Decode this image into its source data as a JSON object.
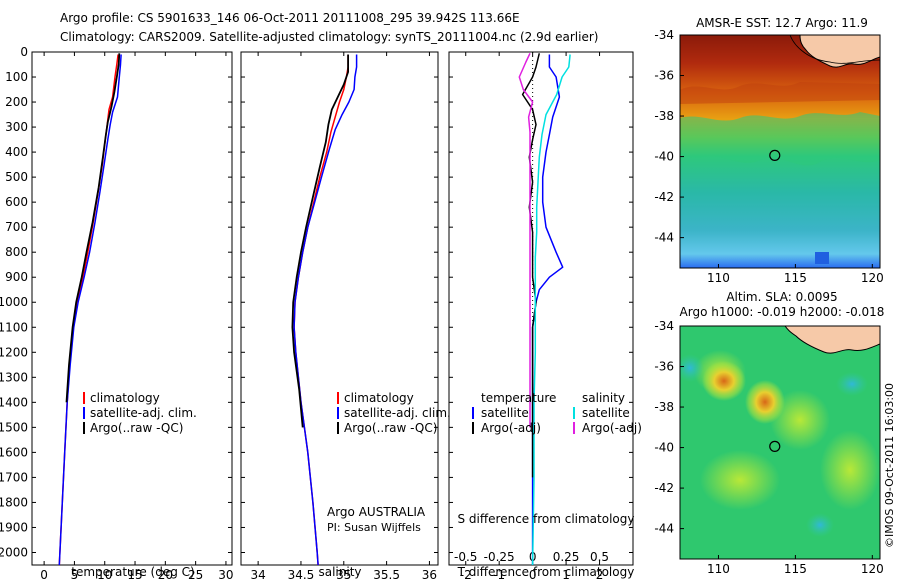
{
  "header": {
    "title_line1": "Argo profile: CS 5901633_146 06-Oct-2011 20111008_295 39.942S 113.66E",
    "title_line2": "Climatology: CARS2009. Satellite-adjusted climatology: synTS_20111004.nc (2.9d earlier)"
  },
  "credit": "©IMOS 09-Oct-2011 16:03:00",
  "colors": {
    "climatology": "#ff0000",
    "satellite": "#0000ff",
    "argo": "#000000",
    "salinity_satellite": "#00e0e0",
    "salinity_argo": "#e020e0",
    "land": "#f6c9a8"
  },
  "chart_data": [
    {
      "type": "line",
      "xlabel": "temperature (deg C)",
      "ylabel": "",
      "xlim": [
        -2,
        31
      ],
      "ylim": [
        2050,
        0
      ],
      "xticks": [
        "0",
        "5",
        "10",
        "15",
        "20",
        "25",
        "30"
      ],
      "xtick_values": [
        0,
        5,
        10,
        15,
        20,
        25,
        30
      ],
      "yticks": [
        "0",
        "100",
        "200",
        "300",
        "400",
        "500",
        "600",
        "700",
        "800",
        "900",
        "1000",
        "1100",
        "1200",
        "1300",
        "1400",
        "1500",
        "1600",
        "1700",
        "1800",
        "1900",
        "2000"
      ],
      "ytick_values": [
        0,
        100,
        200,
        300,
        400,
        500,
        600,
        700,
        800,
        900,
        1000,
        1100,
        1200,
        1300,
        1400,
        1500,
        1600,
        1700,
        1800,
        1900,
        2000
      ],
      "legend": [
        "climatology",
        "satellite-adj. clim.",
        "Argo(..raw -QC)"
      ],
      "series": [
        {
          "name": "climatology",
          "points": [
            [
              12.2,
              10
            ],
            [
              12.0,
              50
            ],
            [
              11.7,
              100
            ],
            [
              11.3,
              180
            ],
            [
              10.7,
              230
            ],
            [
              10.4,
              290
            ],
            [
              10.1,
              350
            ],
            [
              9.6,
              450
            ],
            [
              8.9,
              560
            ],
            [
              8.1,
              680
            ],
            [
              7.2,
              800
            ],
            [
              6.4,
              900
            ],
            [
              5.4,
              1000
            ],
            [
              4.8,
              1100
            ],
            [
              4.2,
              1250
            ],
            [
              3.8,
              1400
            ],
            [
              3.4,
              1600
            ],
            [
              3.0,
              1800
            ],
            [
              2.6,
              2000
            ],
            [
              2.5,
              2050
            ]
          ]
        },
        {
          "name": "satellite-adj. clim.",
          "points": [
            [
              12.7,
              10
            ],
            [
              12.6,
              50
            ],
            [
              12.4,
              100
            ],
            [
              12.1,
              180
            ],
            [
              11.3,
              240
            ],
            [
              10.9,
              290
            ],
            [
              10.5,
              350
            ],
            [
              9.9,
              450
            ],
            [
              9.2,
              560
            ],
            [
              8.4,
              680
            ],
            [
              7.5,
              800
            ],
            [
              6.6,
              900
            ],
            [
              5.6,
              1000
            ],
            [
              4.9,
              1100
            ],
            [
              4.3,
              1250
            ],
            [
              3.8,
              1400
            ],
            [
              3.4,
              1600
            ],
            [
              3.0,
              1800
            ],
            [
              2.6,
              2000
            ],
            [
              2.5,
              2050
            ]
          ]
        },
        {
          "name": "Argo(..raw -QC)",
          "points": [
            [
              12.4,
              5
            ],
            [
              12.3,
              50
            ],
            [
              12.0,
              100
            ],
            [
              11.6,
              160
            ],
            [
              11.1,
              220
            ],
            [
              10.5,
              280
            ],
            [
              10.2,
              330
            ],
            [
              9.7,
              420
            ],
            [
              9.0,
              540
            ],
            [
              8.0,
              680
            ],
            [
              7.0,
              800
            ],
            [
              6.2,
              900
            ],
            [
              5.3,
              1000
            ],
            [
              4.7,
              1100
            ],
            [
              4.1,
              1250
            ],
            [
              3.7,
              1400
            ]
          ]
        }
      ]
    },
    {
      "type": "line",
      "xlabel": "salinity",
      "xlim": [
        33.8,
        36.1
      ],
      "ylim": [
        2050,
        0
      ],
      "xticks": [
        "34",
        "34.5",
        "35",
        "35.5",
        "36"
      ],
      "xtick_values": [
        34,
        34.5,
        35,
        35.5,
        36
      ],
      "legend": [
        "climatology",
        "satellite-adj. clim.",
        "Argo(..raw -QC)"
      ],
      "annotation_line1": "Argo AUSTRALIA",
      "annotation_line2": "PI: Susan Wijffels",
      "series": [
        {
          "name": "climatology",
          "points": [
            [
              35.05,
              10
            ],
            [
              35.05,
              60
            ],
            [
              35.03,
              100
            ],
            [
              35.0,
              150
            ],
            [
              34.95,
              200
            ],
            [
              34.9,
              260
            ],
            [
              34.85,
              320
            ],
            [
              34.8,
              400
            ],
            [
              34.72,
              500
            ],
            [
              34.65,
              600
            ],
            [
              34.58,
              700
            ],
            [
              34.52,
              800
            ],
            [
              34.47,
              900
            ],
            [
              34.43,
              1000
            ],
            [
              34.42,
              1100
            ],
            [
              34.44,
              1200
            ],
            [
              34.5,
              1400
            ],
            [
              34.58,
              1600
            ],
            [
              34.64,
              1800
            ],
            [
              34.69,
              2000
            ],
            [
              34.7,
              2050
            ]
          ]
        },
        {
          "name": "satellite-adj. clim.",
          "points": [
            [
              35.15,
              10
            ],
            [
              35.15,
              60
            ],
            [
              35.13,
              100
            ],
            [
              35.12,
              150
            ],
            [
              35.06,
              200
            ],
            [
              34.98,
              250
            ],
            [
              34.9,
              310
            ],
            [
              34.83,
              390
            ],
            [
              34.74,
              500
            ],
            [
              34.66,
              600
            ],
            [
              34.58,
              700
            ],
            [
              34.52,
              800
            ],
            [
              34.47,
              900
            ],
            [
              34.43,
              1000
            ],
            [
              34.42,
              1100
            ],
            [
              34.44,
              1200
            ],
            [
              34.5,
              1400
            ],
            [
              34.58,
              1600
            ],
            [
              34.64,
              1800
            ],
            [
              34.69,
              2000
            ],
            [
              34.7,
              2050
            ]
          ]
        },
        {
          "name": "Argo(..raw -QC)",
          "points": [
            [
              35.05,
              10
            ],
            [
              35.05,
              80
            ],
            [
              35.0,
              130
            ],
            [
              34.93,
              180
            ],
            [
              34.86,
              230
            ],
            [
              34.82,
              290
            ],
            [
              34.79,
              360
            ],
            [
              34.72,
              460
            ],
            [
              34.64,
              580
            ],
            [
              34.56,
              700
            ],
            [
              34.5,
              800
            ],
            [
              34.45,
              900
            ],
            [
              34.41,
              1000
            ],
            [
              34.4,
              1100
            ],
            [
              34.42,
              1200
            ],
            [
              34.48,
              1350
            ],
            [
              34.52,
              1500
            ]
          ]
        }
      ]
    },
    {
      "type": "line",
      "xlabel": "T difference from climatology",
      "top_xlabel": "S difference from climatology",
      "xlim": [
        -2.5,
        3.0
      ],
      "ylim": [
        2050,
        0
      ],
      "xticks": [
        "-2",
        "-1",
        "0",
        "1",
        "2"
      ],
      "xtick_values": [
        -2,
        -1,
        0,
        1,
        2
      ],
      "top_xticks": [
        "-0.5",
        "-0.25",
        "0",
        "0.25",
        "0.5"
      ],
      "top_xtick_values": [
        -0.5,
        -0.25,
        0,
        0.25,
        0.5
      ],
      "legend_temperature_title": "temperature",
      "legend_salinity_title": "salinity",
      "legend_temperature": [
        "satellite",
        "Argo(-adj)"
      ],
      "legend_salinity": [
        "satellite",
        "Argo(-adj)"
      ],
      "series": [
        {
          "name": "temperature satellite",
          "points": [
            [
              0.5,
              10
            ],
            [
              0.5,
              60
            ],
            [
              0.7,
              100
            ],
            [
              0.8,
              180
            ],
            [
              0.6,
              260
            ],
            [
              0.5,
              330
            ],
            [
              0.4,
              400
            ],
            [
              0.3,
              500
            ],
            [
              0.3,
              600
            ],
            [
              0.4,
              700
            ],
            [
              0.7,
              800
            ],
            [
              0.9,
              860
            ],
            [
              0.5,
              900
            ],
            [
              0.2,
              950
            ],
            [
              0.1,
              1000
            ],
            [
              0.0,
              1100
            ],
            [
              0.0,
              1400
            ],
            [
              0.0,
              2050
            ]
          ]
        },
        {
          "name": "temperature Argo(-adj)",
          "points": [
            [
              0.2,
              5
            ],
            [
              0.1,
              60
            ],
            [
              0.0,
              100
            ],
            [
              -0.3,
              170
            ],
            [
              0.0,
              230
            ],
            [
              0.1,
              290
            ],
            [
              0.0,
              350
            ],
            [
              -0.1,
              420
            ],
            [
              0.0,
              520
            ],
            [
              -0.1,
              620
            ],
            [
              0.0,
              720
            ],
            [
              0.0,
              820
            ],
            [
              0.0,
              900
            ],
            [
              0.1,
              1000
            ],
            [
              0.0,
              1100
            ],
            [
              0.0,
              1300
            ],
            [
              0.0,
              1500
            ],
            [
              0.0,
              1700
            ]
          ]
        },
        {
          "name": "salinity satellite",
          "points": [
            [
              0.28,
              10
            ],
            [
              0.27,
              60
            ],
            [
              0.22,
              100
            ],
            [
              0.18,
              170
            ],
            [
              0.1,
              250
            ],
            [
              0.07,
              330
            ],
            [
              0.05,
              420
            ],
            [
              0.04,
              520
            ],
            [
              0.03,
              620
            ],
            [
              0.03,
              720
            ],
            [
              0.02,
              820
            ],
            [
              0.02,
              920
            ],
            [
              0.02,
              1020
            ],
            [
              0.02,
              1200
            ],
            [
              0.01,
              1400
            ],
            [
              0.01,
              1700
            ],
            [
              0.0,
              2050
            ]
          ]
        },
        {
          "name": "salinity Argo(-adj)",
          "points": [
            [
              -0.02,
              5
            ],
            [
              -0.05,
              40
            ],
            [
              -0.1,
              100
            ],
            [
              -0.07,
              150
            ],
            [
              0.0,
              200
            ],
            [
              -0.03,
              260
            ],
            [
              -0.02,
              320
            ],
            [
              -0.02,
              420
            ],
            [
              -0.02,
              520
            ],
            [
              -0.02,
              620
            ],
            [
              -0.02,
              720
            ],
            [
              -0.02,
              820
            ],
            [
              -0.02,
              920
            ],
            [
              -0.02,
              1020
            ],
            [
              -0.02,
              1200
            ],
            [
              -0.02,
              1400
            ],
            [
              -0.02,
              1500
            ]
          ]
        }
      ]
    },
    {
      "type": "heatmap",
      "title": "AMSR-E SST: 12.7 Argo: 11.9",
      "xlim": [
        107.5,
        120.5
      ],
      "ylim": [
        -45.5,
        -34
      ],
      "xticks": [
        "110",
        "115",
        "120"
      ],
      "xtick_values": [
        110,
        115,
        120
      ],
      "yticks": [
        "-34",
        "-36",
        "-38",
        "-40",
        "-42",
        "-44"
      ],
      "ytick_values": [
        -34,
        -36,
        -38,
        -40,
        -42,
        -44
      ],
      "marker": [
        113.66,
        -39.942
      ]
    },
    {
      "type": "heatmap",
      "title_line1": "Altim. SLA: 0.0095",
      "title_line2": "Argo h1000: -0.019 h2000: -0.018",
      "xlim": [
        107.5,
        120.5
      ],
      "ylim": [
        -45.5,
        -34
      ],
      "xticks": [
        "110",
        "115",
        "120"
      ],
      "xtick_values": [
        110,
        115,
        120
      ],
      "yticks": [
        "-34",
        "-36",
        "-38",
        "-40",
        "-42",
        "-44"
      ],
      "ytick_values": [
        -34,
        -36,
        -38,
        -40,
        -42,
        -44
      ],
      "marker": [
        113.66,
        -39.942
      ]
    }
  ]
}
